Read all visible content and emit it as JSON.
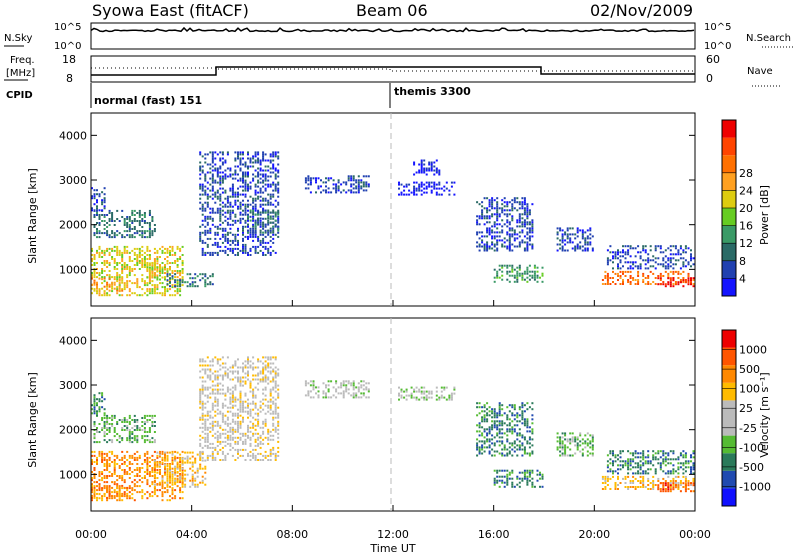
{
  "header": {
    "station": "Syowa East (fitACF)",
    "beam": "Beam 06",
    "date": "02/Nov/2009"
  },
  "panels": {
    "nsky": {
      "label": "N.Sky",
      "tick_top": "10^5",
      "tick_bottom": "10^0",
      "right_label": "N.Search",
      "right_tick_top": "10^5",
      "right_tick_bottom": "10^0"
    },
    "freq": {
      "label_line1": "Freq.",
      "label_line2": "[MHz]",
      "tick_top": "18",
      "tick_bottom": "8",
      "right_label": "Nave",
      "right_tick_top": "60",
      "right_tick_bottom": "0"
    },
    "cpid": {
      "label": "CPID",
      "mode1": "normal (fast) 151",
      "mode2": "themis 3300"
    }
  },
  "axes": {
    "ylabel": "Slant Range [km]",
    "xlabel": "Time UT",
    "y_ticks": [
      1000,
      2000,
      3000,
      4000
    ],
    "x_ticks": [
      "00:00",
      "04:00",
      "08:00",
      "12:00",
      "16:00",
      "20:00",
      "00:00"
    ]
  },
  "colorbars": {
    "power": {
      "label": "Power [dB]",
      "ticks": [
        "4",
        "8",
        "12",
        "16",
        "20",
        "24",
        "28"
      ],
      "colors": [
        "#1414ff",
        "#2040b0",
        "#2a6a66",
        "#3a9a66",
        "#66cc22",
        "#ddcc10",
        "#ffa020",
        "#ff7000",
        "#ff4400",
        "#ee0000"
      ]
    },
    "velocity": {
      "label": "Velocity [m s⁻¹]",
      "ticks": [
        "1000",
        "500",
        "100",
        "25",
        "-25",
        "-100",
        "-500",
        "-1000"
      ],
      "colors": [
        "#1010ff",
        "#204ab0",
        "#2a7a5a",
        "#55bb33",
        "#bbbbbb",
        "#bbbbbb",
        "#ffbb00",
        "#ff8800",
        "#ff5500",
        "#ee0000"
      ]
    }
  },
  "chart_data": [
    {
      "type": "heatmap",
      "name": "power",
      "x_range_hours": [
        0,
        24
      ],
      "y_range_km": [
        180,
        4500
      ],
      "colorbar_label": "Power [dB]",
      "colorbar_range": [
        0,
        30
      ],
      "blobs": [
        {
          "t": [
            0.0,
            3.7
          ],
          "r": [
            400,
            1500
          ],
          "level": 5
        },
        {
          "t": [
            0.0,
            1.3
          ],
          "r": [
            500,
            800
          ],
          "level": 6
        },
        {
          "t": [
            2.2,
            3.2
          ],
          "r": [
            750,
            1150
          ],
          "level": 5
        },
        {
          "t": [
            0.1,
            2.6
          ],
          "r": [
            1700,
            2300
          ],
          "level": 2
        },
        {
          "t": [
            0.0,
            0.6
          ],
          "r": [
            2300,
            2800
          ],
          "level": 1
        },
        {
          "t": [
            3.0,
            4.8
          ],
          "r": [
            600,
            900
          ],
          "level": 2
        },
        {
          "t": [
            4.3,
            7.4
          ],
          "r": [
            1300,
            3600
          ],
          "level": 1
        },
        {
          "t": [
            6.2,
            7.4
          ],
          "r": [
            1800,
            2300
          ],
          "level": 2
        },
        {
          "t": [
            8.5,
            11.0
          ],
          "r": [
            2700,
            3100
          ],
          "level": 1
        },
        {
          "t": [
            12.2,
            14.4
          ],
          "r": [
            2650,
            2950
          ],
          "level": 0
        },
        {
          "t": [
            12.8,
            13.8
          ],
          "r": [
            3100,
            3450
          ],
          "level": 0
        },
        {
          "t": [
            15.3,
            17.6
          ],
          "r": [
            1400,
            2600
          ],
          "level": 1
        },
        {
          "t": [
            16.0,
            18.0
          ],
          "r": [
            700,
            1100
          ],
          "level": 3
        },
        {
          "t": [
            18.5,
            20.0
          ],
          "r": [
            1400,
            1900
          ],
          "level": 1
        },
        {
          "t": [
            20.3,
            24.0
          ],
          "r": [
            650,
            950
          ],
          "level": 7
        },
        {
          "t": [
            22.5,
            24.0
          ],
          "r": [
            600,
            800
          ],
          "level": 9
        },
        {
          "t": [
            20.5,
            24.0
          ],
          "r": [
            1000,
            1500
          ],
          "level": 1
        }
      ]
    },
    {
      "type": "heatmap",
      "name": "velocity",
      "x_range_hours": [
        0,
        24
      ],
      "y_range_km": [
        180,
        4500
      ],
      "colorbar_label": "Velocity [m s⁻¹]",
      "colorbar_range": [
        -1000,
        1000
      ],
      "blobs": [
        {
          "t": [
            0.0,
            3.7
          ],
          "r": [
            400,
            1500
          ],
          "level": 7
        },
        {
          "t": [
            0.0,
            1.5
          ],
          "r": [
            450,
            750
          ],
          "level": 7
        },
        {
          "t": [
            2.5,
            4.5
          ],
          "r": [
            700,
            1500
          ],
          "level": 6
        },
        {
          "t": [
            0.1,
            2.6
          ],
          "r": [
            1700,
            2300
          ],
          "level": 3
        },
        {
          "t": [
            0.0,
            0.6
          ],
          "r": [
            2300,
            2800
          ],
          "level": 2
        },
        {
          "t": [
            4.3,
            7.4
          ],
          "r": [
            1300,
            3600
          ],
          "level": 5
        },
        {
          "t": [
            8.5,
            11.0
          ],
          "r": [
            2700,
            3100
          ],
          "level": 4
        },
        {
          "t": [
            12.2,
            14.4
          ],
          "r": [
            2650,
            2950
          ],
          "level": 4
        },
        {
          "t": [
            15.3,
            17.6
          ],
          "r": [
            1400,
            2600
          ],
          "level": 2
        },
        {
          "t": [
            16.0,
            18.0
          ],
          "r": [
            700,
            1100
          ],
          "level": 2
        },
        {
          "t": [
            18.5,
            20.0
          ],
          "r": [
            1400,
            1900
          ],
          "level": 3
        },
        {
          "t": [
            20.3,
            24.0
          ],
          "r": [
            650,
            950
          ],
          "level": 6
        },
        {
          "t": [
            22.5,
            24.0
          ],
          "r": [
            600,
            800
          ],
          "level": 8
        },
        {
          "t": [
            20.5,
            24.0
          ],
          "r": [
            1000,
            1500
          ],
          "level": 2
        }
      ]
    }
  ]
}
